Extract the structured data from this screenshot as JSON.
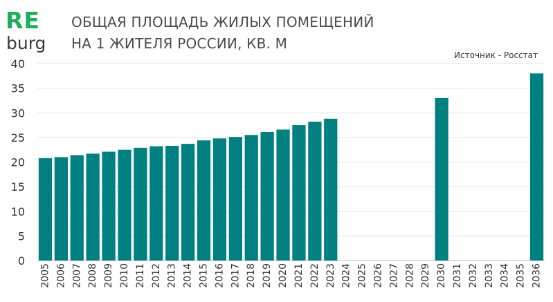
{
  "logo": {
    "top": "RE",
    "bottom": "burg",
    "accent_color": "#1fae5b"
  },
  "header": {
    "title_line1": "ОБЩАЯ ПЛОЩАДЬ ЖИЛЫХ ПОМЕЩЕНИЙ",
    "title_line2": "НА 1 ЖИТЕЛЯ РОССИИ, КВ. М",
    "source": "Источник - Росстат"
  },
  "chart_data": {
    "type": "bar",
    "bar_color": "#008080",
    "grid": true,
    "ylim": [
      0,
      40
    ],
    "yticks": [
      0,
      5,
      10,
      15,
      20,
      25,
      30,
      35,
      40
    ],
    "categories": [
      "2005",
      "2006",
      "2007",
      "2008",
      "2009",
      "2010",
      "2011",
      "2012",
      "2013",
      "2014",
      "2015",
      "2016",
      "2017",
      "2018",
      "2019",
      "2020",
      "2021",
      "2022",
      "2023",
      "2024",
      "2025",
      "2026",
      "2027",
      "2028",
      "2029",
      "2030",
      "2031",
      "2032",
      "2033",
      "2034",
      "2035",
      "2036"
    ],
    "values": [
      20.8,
      21.0,
      21.4,
      21.7,
      22.1,
      22.5,
      22.9,
      23.2,
      23.3,
      23.7,
      24.4,
      24.8,
      25.1,
      25.5,
      26.1,
      26.6,
      27.5,
      28.2,
      28.8,
      null,
      null,
      null,
      null,
      null,
      null,
      33.0,
      null,
      null,
      null,
      null,
      null,
      38.0
    ]
  }
}
